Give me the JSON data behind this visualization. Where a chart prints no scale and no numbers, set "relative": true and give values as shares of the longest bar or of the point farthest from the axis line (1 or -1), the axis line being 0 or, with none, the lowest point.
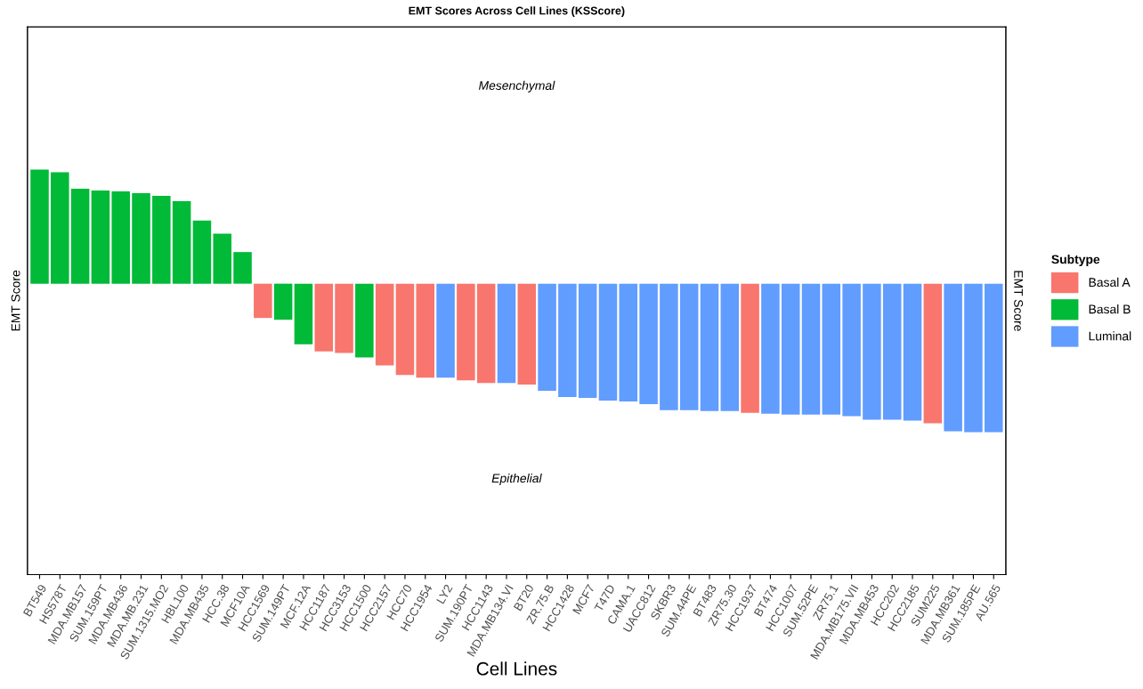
{
  "chart_data": {
    "type": "bar",
    "title": "EMT Scores Across Cell Lines (KSScore)",
    "xlabel": "Cell Lines",
    "ylabel": "EMT Score",
    "y2label": "EMT Score",
    "legend_title": "Subtype",
    "legend": "right",
    "relative": true,
    "annotations": [
      "Mesenchymal",
      "Epithelial"
    ],
    "categories": [
      "BT549",
      "HS578T",
      "MDA.MB157",
      "SUM.159PT",
      "MDA.MB436",
      "MDA.MB.231",
      "SUM.1315.MO2",
      "HBL100",
      "MDA.MB435",
      "HCC.38",
      "MCF10A",
      "HCC1569",
      "SUM.149PT",
      "MCF.12A",
      "HCC1187",
      "HCC3153",
      "HCC1500",
      "HCC2157",
      "HCC70",
      "HCC1954",
      "LY2",
      "SUM.190PT",
      "HCC1143",
      "MDA.MB134.VI",
      "BT20",
      "ZR.75.B",
      "HCC1428",
      "MCF7",
      "T47D",
      "CAMA.1",
      "UACC812",
      "SKBR3",
      "SUM.44PE",
      "BT483",
      "ZR75.30",
      "HCC1937",
      "BT474",
      "HCC1007",
      "SUM.52PE",
      "ZR75.1",
      "MDA.MB175.VII",
      "MDA.MB453",
      "HCC202",
      "HCC2185",
      "SUM225",
      "MDA.MB361",
      "SUM.185PE",
      "AU.565"
    ],
    "series": [
      {
        "name": "Basal A",
        "color": "#f8766d",
        "values": [
          null,
          null,
          null,
          null,
          null,
          null,
          null,
          null,
          null,
          null,
          null,
          -0.231,
          null,
          null,
          -0.456,
          -0.467,
          null,
          -0.55,
          -0.615,
          -0.633,
          null,
          -0.651,
          -0.669,
          null,
          -0.68,
          null,
          null,
          null,
          null,
          null,
          null,
          null,
          null,
          null,
          null,
          -0.87,
          null,
          null,
          null,
          null,
          null,
          null,
          null,
          null,
          -0.941,
          null,
          null,
          null
        ]
      },
      {
        "name": "Basal B",
        "color": "#00ba38",
        "values": [
          0.769,
          0.751,
          0.639,
          0.627,
          0.621,
          0.609,
          0.592,
          0.556,
          0.426,
          0.337,
          0.213,
          null,
          -0.243,
          -0.408,
          null,
          null,
          -0.497,
          null,
          null,
          null,
          null,
          null,
          null,
          null,
          null,
          null,
          null,
          null,
          null,
          null,
          null,
          null,
          null,
          null,
          null,
          null,
          null,
          null,
          null,
          null,
          null,
          null,
          null,
          null,
          null,
          null,
          null,
          null
        ]
      },
      {
        "name": "Luminal",
        "color": "#619cff",
        "values": [
          null,
          null,
          null,
          null,
          null,
          null,
          null,
          null,
          null,
          null,
          null,
          null,
          null,
          null,
          null,
          null,
          null,
          null,
          null,
          null,
          -0.633,
          null,
          null,
          -0.669,
          null,
          -0.722,
          -0.763,
          -0.769,
          -0.787,
          -0.793,
          -0.811,
          -0.852,
          -0.852,
          -0.858,
          -0.858,
          null,
          -0.876,
          -0.882,
          -0.882,
          -0.882,
          -0.893,
          -0.917,
          -0.917,
          -0.923,
          null,
          -0.994,
          -1,
          -1
        ]
      }
    ]
  }
}
